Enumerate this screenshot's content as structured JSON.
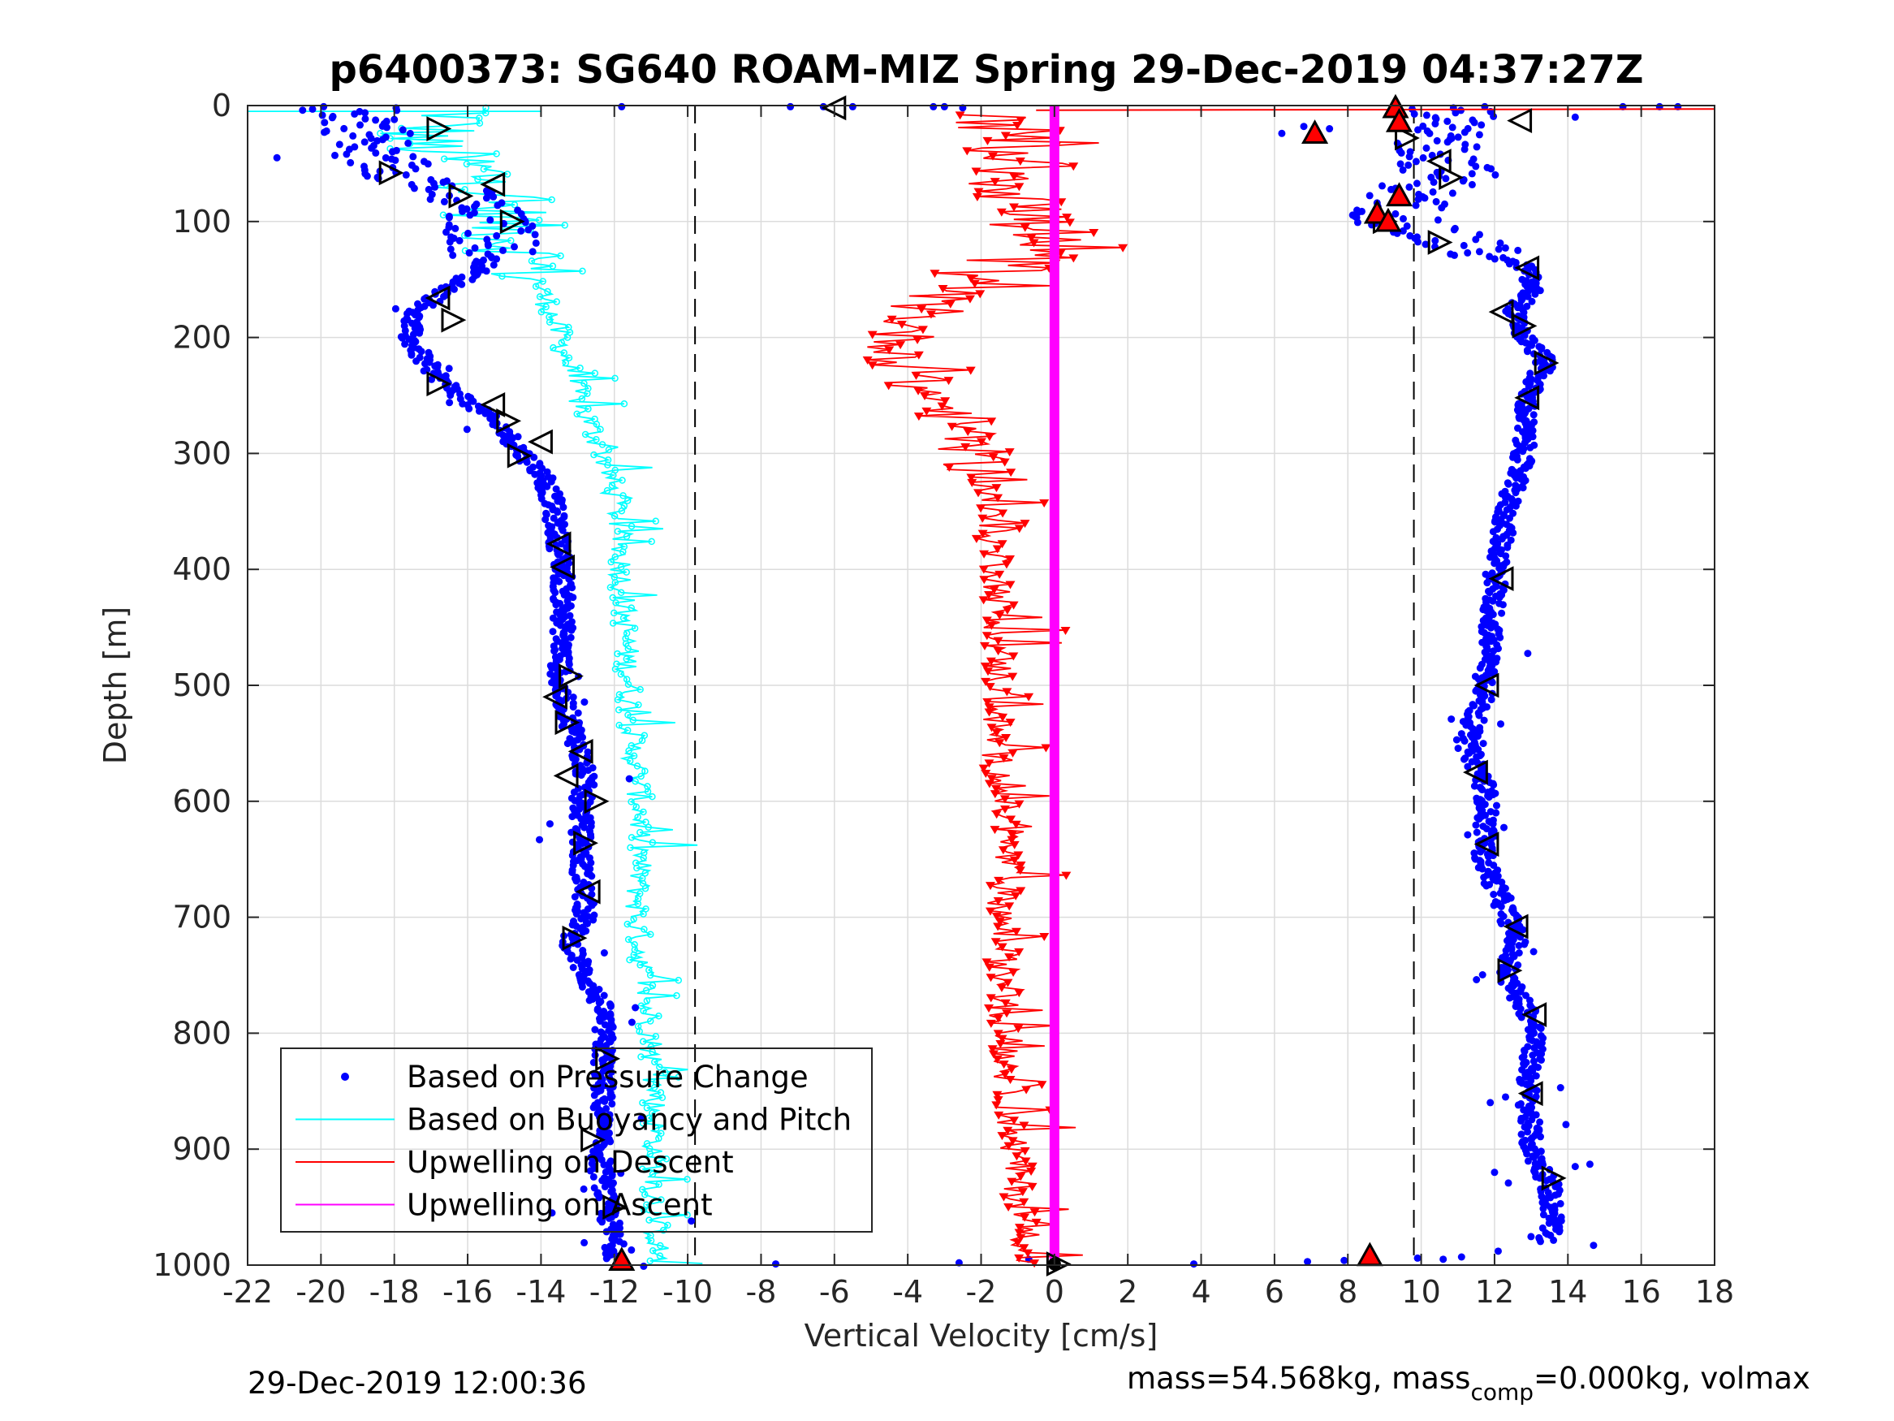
{
  "chart_data": {
    "type": "scatter",
    "title": "p6400373: SG640 ROAM-MIZ Spring 29-Dec-2019 04:37:27Z",
    "xlabel": "Vertical Velocity [cm/s]",
    "ylabel": "Depth [m]",
    "xlim": [
      -22,
      18
    ],
    "ylim": [
      0,
      1000
    ],
    "y_reversed": true,
    "grid": true,
    "x_ticks": [
      "-22",
      "-20",
      "-18",
      "-16",
      "-14",
      "-12",
      "-10",
      "-8",
      "-6",
      "-4",
      "-2",
      "0",
      "2",
      "4",
      "6",
      "8",
      "10",
      "12",
      "14",
      "16",
      "18"
    ],
    "y_ticks": [
      "0",
      "100",
      "200",
      "300",
      "400",
      "500",
      "600",
      "700",
      "800",
      "900",
      "1000"
    ],
    "reference_lines_x": [
      -9.8,
      9.8
    ],
    "legend_position": "bottom-left",
    "legend": [
      {
        "label": "Based on Pressure Change",
        "color": "#0000ff",
        "style": "dot"
      },
      {
        "label": "Based on Buoyancy and Pitch",
        "color": "#00ffff",
        "style": "line"
      },
      {
        "label": "Upwelling on Descent",
        "color": "#ff0000",
        "style": "line"
      },
      {
        "label": "Upwelling on Ascent",
        "color": "#ff00ff",
        "style": "line"
      }
    ],
    "series": [
      {
        "name": "Based on Pressure Change",
        "color": "#0000ff",
        "part": "descent",
        "profile": [
          [
            0,
            -19.2
          ],
          [
            20,
            -18.6
          ],
          [
            40,
            -18.8
          ],
          [
            60,
            -17.5
          ],
          [
            80,
            -16.2
          ],
          [
            100,
            -15.5
          ],
          [
            120,
            -15.2
          ],
          [
            140,
            -15.6
          ],
          [
            160,
            -16.6
          ],
          [
            180,
            -17.5
          ],
          [
            200,
            -17.6
          ],
          [
            220,
            -17.2
          ],
          [
            240,
            -16.6
          ],
          [
            260,
            -15.8
          ],
          [
            280,
            -15.0
          ],
          [
            300,
            -14.5
          ],
          [
            320,
            -13.9
          ],
          [
            340,
            -13.7
          ],
          [
            360,
            -13.6
          ],
          [
            380,
            -13.5
          ],
          [
            400,
            -13.4
          ],
          [
            450,
            -13.4
          ],
          [
            500,
            -13.5
          ],
          [
            550,
            -13.0
          ],
          [
            580,
            -12.8
          ],
          [
            600,
            -12.9
          ],
          [
            650,
            -12.9
          ],
          [
            700,
            -12.8
          ],
          [
            720,
            -13.2
          ],
          [
            750,
            -12.8
          ],
          [
            780,
            -12.3
          ],
          [
            800,
            -12.3
          ],
          [
            850,
            -12.3
          ],
          [
            900,
            -12.4
          ],
          [
            950,
            -12.2
          ],
          [
            1000,
            -11.9
          ]
        ]
      },
      {
        "name": "Based on Pressure Change",
        "color": "#0000ff",
        "part": "ascent",
        "profile": [
          [
            0,
            11.2
          ],
          [
            20,
            10.2
          ],
          [
            40,
            10.6
          ],
          [
            60,
            10.8
          ],
          [
            80,
            9.5
          ],
          [
            100,
            9.4
          ],
          [
            120,
            11.0
          ],
          [
            140,
            12.9
          ],
          [
            160,
            13.0
          ],
          [
            180,
            12.5
          ],
          [
            200,
            12.8
          ],
          [
            220,
            13.4
          ],
          [
            250,
            12.9
          ],
          [
            280,
            12.8
          ],
          [
            300,
            12.8
          ],
          [
            350,
            12.3
          ],
          [
            400,
            12.1
          ],
          [
            450,
            11.9
          ],
          [
            500,
            11.8
          ],
          [
            550,
            11.2
          ],
          [
            580,
            11.7
          ],
          [
            600,
            11.8
          ],
          [
            650,
            11.7
          ],
          [
            700,
            12.4
          ],
          [
            720,
            12.6
          ],
          [
            750,
            12.3
          ],
          [
            780,
            12.9
          ],
          [
            800,
            13.1
          ],
          [
            850,
            12.9
          ],
          [
            900,
            13.0
          ],
          [
            930,
            13.5
          ],
          [
            960,
            13.6
          ],
          [
            980,
            13.4
          ]
        ]
      },
      {
        "name": "Based on Buoyancy and Pitch",
        "color": "#00ffff",
        "profile": [
          [
            5,
            -16.0
          ],
          [
            30,
            -17.5
          ],
          [
            60,
            -15.5
          ],
          [
            90,
            -15.2
          ],
          [
            110,
            -14.8
          ],
          [
            130,
            -14.4
          ],
          [
            150,
            -14.1
          ],
          [
            180,
            -13.7
          ],
          [
            200,
            -13.5
          ],
          [
            230,
            -13.2
          ],
          [
            260,
            -12.9
          ],
          [
            300,
            -12.3
          ],
          [
            350,
            -11.9
          ],
          [
            400,
            -11.8
          ],
          [
            450,
            -11.7
          ],
          [
            500,
            -11.6
          ],
          [
            550,
            -11.5
          ],
          [
            600,
            -11.3
          ],
          [
            650,
            -11.3
          ],
          [
            700,
            -11.4
          ],
          [
            750,
            -11.2
          ],
          [
            800,
            -11.0
          ],
          [
            850,
            -10.9
          ],
          [
            900,
            -10.9
          ],
          [
            950,
            -10.9
          ],
          [
            1000,
            -10.8
          ]
        ]
      },
      {
        "name": "Upwelling on Descent",
        "color": "#ff0000",
        "profile": [
          [
            10,
            -1.5
          ],
          [
            40,
            -1.0
          ],
          [
            80,
            -0.8
          ],
          [
            110,
            -0.7
          ],
          [
            130,
            -0.9
          ],
          [
            150,
            -2.0
          ],
          [
            170,
            -3.5
          ],
          [
            190,
            -4.0
          ],
          [
            200,
            -4.2
          ],
          [
            220,
            -4.1
          ],
          [
            240,
            -3.8
          ],
          [
            260,
            -3.0
          ],
          [
            280,
            -2.4
          ],
          [
            300,
            -2.2
          ],
          [
            330,
            -1.8
          ],
          [
            360,
            -1.8
          ],
          [
            400,
            -1.5
          ],
          [
            450,
            -1.5
          ],
          [
            500,
            -1.5
          ],
          [
            550,
            -1.6
          ],
          [
            600,
            -1.4
          ],
          [
            650,
            -1.3
          ],
          [
            700,
            -1.4
          ],
          [
            750,
            -1.4
          ],
          [
            800,
            -1.3
          ],
          [
            850,
            -1.2
          ],
          [
            900,
            -1.1
          ],
          [
            950,
            -0.9
          ],
          [
            1000,
            -0.6
          ]
        ]
      },
      {
        "name": "Upwelling on Ascent",
        "color": "#ff00ff",
        "profile": [
          [
            0,
            0
          ],
          [
            1000,
            0
          ]
        ]
      }
    ]
  },
  "footer": {
    "timestamp": "29-Dec-2019 12:00:36",
    "mass_prefix": "mass=54.568kg, mass",
    "mass_sub": "comp",
    "mass_suffix": "=0.000kg, volmax"
  }
}
